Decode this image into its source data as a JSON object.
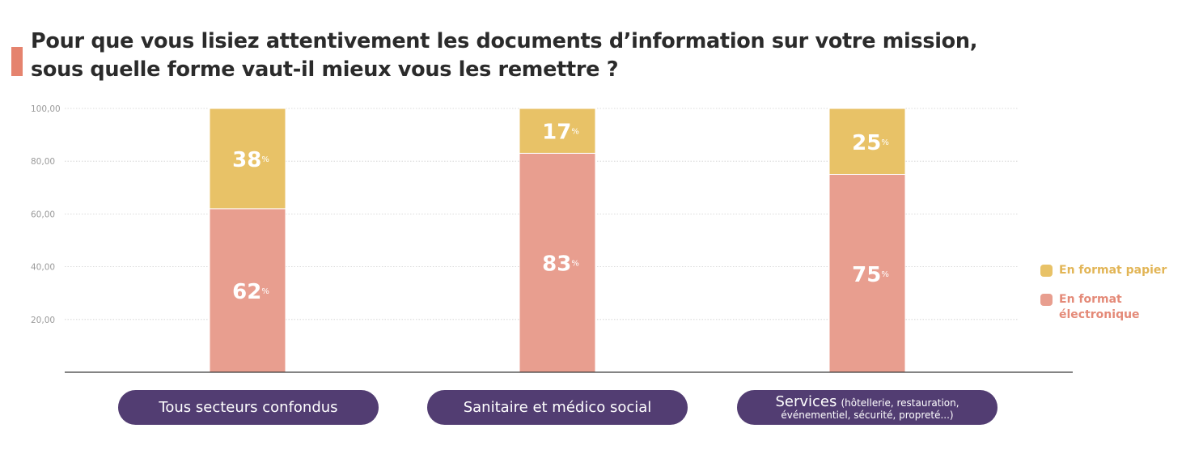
{
  "title": "Pour que vous lisiez attentivement les documents d’information sur votre mission, sous quelle forme vaut-il mieux vous les remettre ?",
  "colors": {
    "accent_marker": "#e5836e",
    "papier": "#e8c267",
    "electronique": "#e89e8f",
    "pill": "#523d72",
    "legend_papier_text": "#e2b556",
    "legend_electronique_text": "#e48a78"
  },
  "legend": {
    "papier": "En format papier",
    "electronique_line1": "En format",
    "electronique_line2": "électronique"
  },
  "categories": {
    "cat1": "Tous secteurs confondus",
    "cat2": "Sanitaire et médico social",
    "cat3_main": "Services",
    "cat3_sub1": "(hôtellerie, restauration,",
    "cat3_sub2": "événementiel, sécurité, propreté...)"
  },
  "chart_data": {
    "type": "bar",
    "stacked": true,
    "categories": [
      "Tous secteurs confondus",
      "Sanitaire et médico social",
      "Services (hôtellerie, restauration, événementiel, sécurité, propreté...)"
    ],
    "series": [
      {
        "name": "En format électronique",
        "values": [
          62,
          83,
          75
        ]
      },
      {
        "name": "En format papier",
        "values": [
          38,
          17,
          25
        ]
      }
    ],
    "ylim": [
      0,
      100
    ],
    "yticks": [
      "20,00",
      "40,00",
      "60,00",
      "80,00",
      "100,00"
    ],
    "unit": "%",
    "grid": true,
    "legend_position": "right"
  }
}
